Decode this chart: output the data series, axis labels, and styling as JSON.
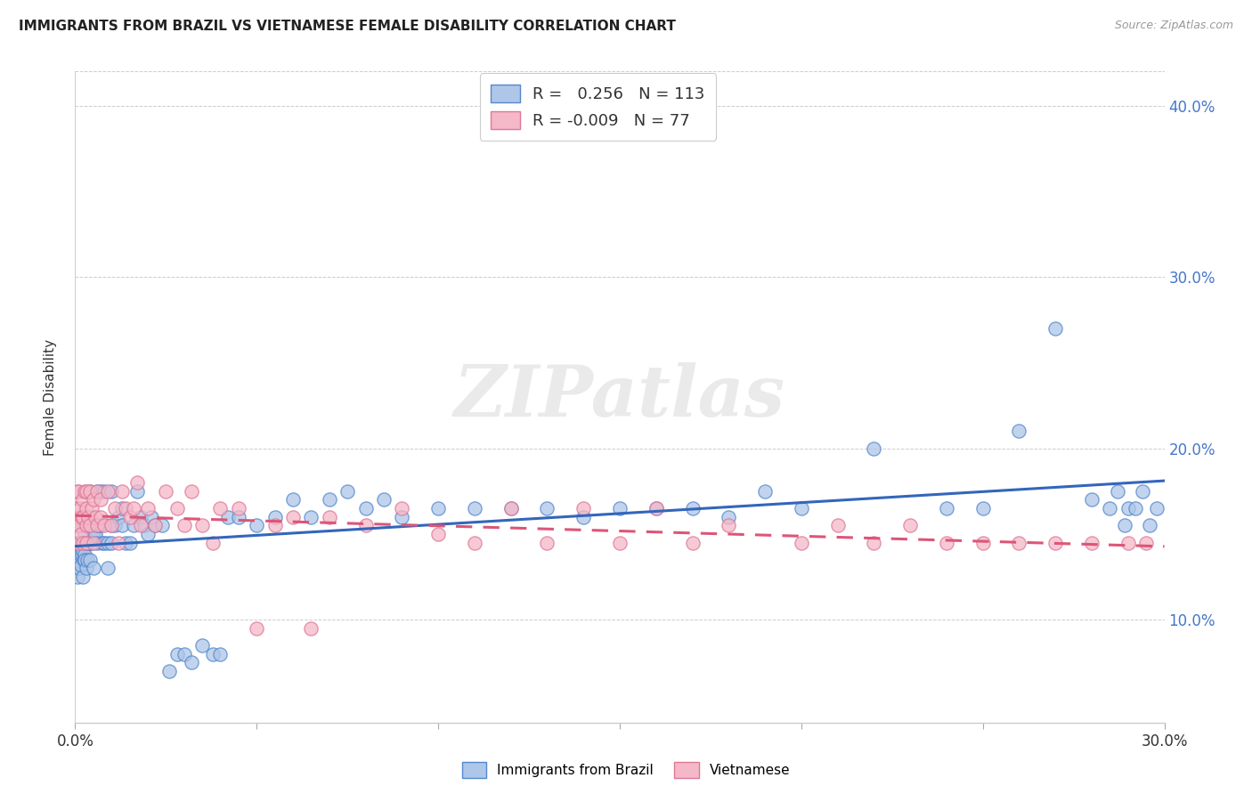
{
  "title": "IMMIGRANTS FROM BRAZIL VS VIETNAMESE FEMALE DISABILITY CORRELATION CHART",
  "source": "Source: ZipAtlas.com",
  "ylabel_label": "Female Disability",
  "xlim": [
    0.0,
    0.3
  ],
  "ylim": [
    0.04,
    0.42
  ],
  "xtick_positions": [
    0.0,
    0.05,
    0.1,
    0.15,
    0.2,
    0.25,
    0.3
  ],
  "xtick_labels": [
    "0.0%",
    "",
    "",
    "",
    "",
    "",
    "30.0%"
  ],
  "ytick_positions": [
    0.1,
    0.2,
    0.3,
    0.4
  ],
  "ytick_labels": [
    "10.0%",
    "20.0%",
    "30.0%",
    "40.0%"
  ],
  "brazil_color": "#aec6e8",
  "brazil_edge": "#5588cc",
  "vietnamese_color": "#f5b8c8",
  "vietnamese_edge": "#dd7799",
  "brazil_line_color": "#3366bb",
  "vietnamese_line_color": "#dd5577",
  "watermark": "ZIPatlas",
  "legend_brazil_label": "Immigrants from Brazil",
  "legend_vietnamese_label": "Vietnamese",
  "R_brazil": 0.256,
  "N_brazil": 113,
  "R_vietnamese": -0.009,
  "N_vietnamese": 77,
  "brazil_points_x": [
    0.0002,
    0.0004,
    0.0005,
    0.0006,
    0.0007,
    0.0008,
    0.0009,
    0.001,
    0.001,
    0.0012,
    0.0013,
    0.0014,
    0.0015,
    0.0016,
    0.0017,
    0.0018,
    0.002,
    0.002,
    0.002,
    0.0022,
    0.0023,
    0.0024,
    0.0025,
    0.0026,
    0.0027,
    0.003,
    0.003,
    0.003,
    0.003,
    0.003,
    0.0033,
    0.0035,
    0.0037,
    0.004,
    0.004,
    0.004,
    0.0042,
    0.0045,
    0.005,
    0.005,
    0.005,
    0.0055,
    0.006,
    0.006,
    0.006,
    0.0065,
    0.007,
    0.007,
    0.0075,
    0.008,
    0.008,
    0.009,
    0.009,
    0.01,
    0.01,
    0.01,
    0.011,
    0.012,
    0.013,
    0.013,
    0.014,
    0.015,
    0.016,
    0.017,
    0.018,
    0.019,
    0.02,
    0.021,
    0.022,
    0.024,
    0.026,
    0.028,
    0.03,
    0.032,
    0.035,
    0.038,
    0.04,
    0.042,
    0.045,
    0.05,
    0.055,
    0.06,
    0.065,
    0.07,
    0.075,
    0.08,
    0.085,
    0.09,
    0.1,
    0.11,
    0.12,
    0.13,
    0.14,
    0.15,
    0.16,
    0.17,
    0.18,
    0.19,
    0.2,
    0.22,
    0.24,
    0.25,
    0.26,
    0.27,
    0.28,
    0.285,
    0.287,
    0.289,
    0.29,
    0.292,
    0.294,
    0.296,
    0.298
  ],
  "brazil_points_y": [
    0.135,
    0.14,
    0.13,
    0.135,
    0.125,
    0.145,
    0.14,
    0.135,
    0.155,
    0.13,
    0.145,
    0.14,
    0.138,
    0.132,
    0.145,
    0.138,
    0.145,
    0.155,
    0.125,
    0.14,
    0.135,
    0.145,
    0.15,
    0.138,
    0.135,
    0.145,
    0.155,
    0.13,
    0.145,
    0.16,
    0.135,
    0.145,
    0.155,
    0.135,
    0.16,
    0.145,
    0.175,
    0.145,
    0.13,
    0.155,
    0.15,
    0.15,
    0.175,
    0.145,
    0.155,
    0.155,
    0.175,
    0.155,
    0.145,
    0.175,
    0.145,
    0.145,
    0.13,
    0.175,
    0.155,
    0.145,
    0.155,
    0.16,
    0.155,
    0.165,
    0.145,
    0.145,
    0.155,
    0.175,
    0.16,
    0.155,
    0.15,
    0.16,
    0.155,
    0.155,
    0.07,
    0.08,
    0.08,
    0.075,
    0.085,
    0.08,
    0.08,
    0.16,
    0.16,
    0.155,
    0.16,
    0.17,
    0.16,
    0.17,
    0.175,
    0.165,
    0.17,
    0.16,
    0.165,
    0.165,
    0.165,
    0.165,
    0.16,
    0.165,
    0.165,
    0.165,
    0.16,
    0.175,
    0.165,
    0.2,
    0.165,
    0.165,
    0.21,
    0.27,
    0.17,
    0.165,
    0.175,
    0.155,
    0.165,
    0.165,
    0.175,
    0.155,
    0.165
  ],
  "vietnamese_points_x": [
    0.0002,
    0.0004,
    0.0006,
    0.0008,
    0.001,
    0.001,
    0.0012,
    0.0014,
    0.0016,
    0.0018,
    0.002,
    0.002,
    0.002,
    0.0025,
    0.003,
    0.003,
    0.003,
    0.003,
    0.0035,
    0.004,
    0.004,
    0.0045,
    0.005,
    0.005,
    0.0055,
    0.006,
    0.006,
    0.007,
    0.007,
    0.008,
    0.009,
    0.01,
    0.011,
    0.012,
    0.013,
    0.014,
    0.015,
    0.016,
    0.017,
    0.018,
    0.02,
    0.022,
    0.025,
    0.028,
    0.03,
    0.032,
    0.035,
    0.038,
    0.04,
    0.045,
    0.05,
    0.055,
    0.06,
    0.065,
    0.07,
    0.08,
    0.09,
    0.1,
    0.11,
    0.12,
    0.13,
    0.14,
    0.15,
    0.16,
    0.17,
    0.18,
    0.2,
    0.21,
    0.22,
    0.23,
    0.24,
    0.25,
    0.26,
    0.27,
    0.28,
    0.29,
    0.295
  ],
  "vietnamese_points_y": [
    0.155,
    0.165,
    0.175,
    0.145,
    0.16,
    0.175,
    0.155,
    0.165,
    0.15,
    0.16,
    0.17,
    0.145,
    0.16,
    0.175,
    0.155,
    0.165,
    0.175,
    0.145,
    0.16,
    0.155,
    0.175,
    0.165,
    0.145,
    0.17,
    0.16,
    0.155,
    0.175,
    0.16,
    0.17,
    0.155,
    0.175,
    0.155,
    0.165,
    0.145,
    0.175,
    0.165,
    0.16,
    0.165,
    0.18,
    0.155,
    0.165,
    0.155,
    0.175,
    0.165,
    0.155,
    0.175,
    0.155,
    0.145,
    0.165,
    0.165,
    0.095,
    0.155,
    0.16,
    0.095,
    0.16,
    0.155,
    0.165,
    0.15,
    0.145,
    0.165,
    0.145,
    0.165,
    0.145,
    0.165,
    0.145,
    0.155,
    0.145,
    0.155,
    0.145,
    0.155,
    0.145,
    0.145,
    0.145,
    0.145,
    0.145,
    0.145,
    0.145
  ]
}
